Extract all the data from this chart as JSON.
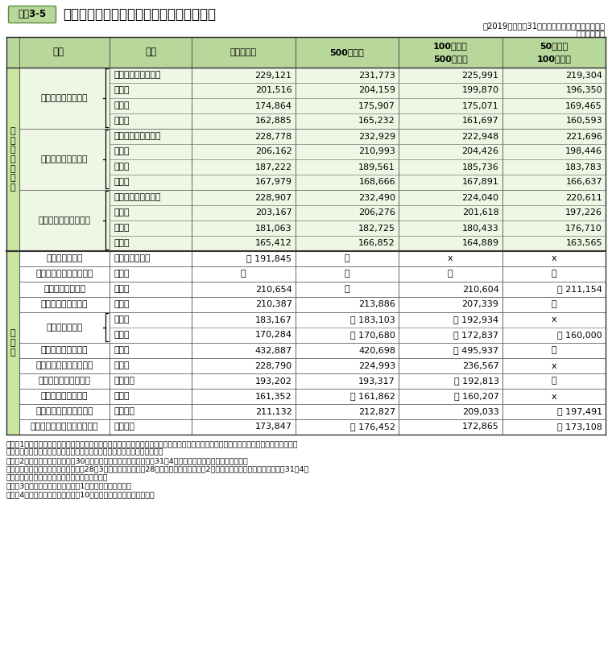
{
  "title": "民間の職種別、学歴別、企業規模別初任給",
  "title_tag": "資料3-5",
  "subtitle": "（2019年（平成31年）職種別民間給与実態調査）",
  "subtitle2": "（単位：円）",
  "col_header_bg": "#b8d89b",
  "sec_label_bg": "#c8e6a0",
  "section1_label": "事\n務\n・\n技\n術\n関\n係",
  "section2_label": "そ\nの\n他",
  "rows": [
    {
      "group": "新　卒　事　務　員",
      "group_rows": 4,
      "has_bracket": true,
      "section": 1,
      "sub_rows": [
        {
          "edu": "大学院修士課程修了",
          "vals": [
            "229,121",
            "231,773",
            "225,991",
            "219,304"
          ],
          "prefix": [
            "",
            "",
            "",
            ""
          ]
        },
        {
          "edu": "大学卒",
          "vals": [
            "201,516",
            "204,159",
            "199,870",
            "196,350"
          ],
          "prefix": [
            "",
            "",
            "",
            ""
          ]
        },
        {
          "edu": "短大卒",
          "vals": [
            "174,864",
            "175,907",
            "175,071",
            "169,465"
          ],
          "prefix": [
            "",
            "",
            "",
            ""
          ]
        },
        {
          "edu": "高校卒",
          "vals": [
            "162,885",
            "165,232",
            "161,697",
            "160,593"
          ],
          "prefix": [
            "",
            "",
            "",
            ""
          ]
        }
      ]
    },
    {
      "group": "新　卒　技　術　者",
      "group_rows": 4,
      "has_bracket": true,
      "section": 1,
      "sub_rows": [
        {
          "edu": "大学院修士課程修了",
          "vals": [
            "228,778",
            "232,929",
            "222,948",
            "221,696"
          ],
          "prefix": [
            "",
            "",
            "",
            ""
          ]
        },
        {
          "edu": "大学卒",
          "vals": [
            "206,162",
            "210,993",
            "204,426",
            "198,446"
          ],
          "prefix": [
            "",
            "",
            "",
            ""
          ]
        },
        {
          "edu": "短大卒",
          "vals": [
            "187,222",
            "189,561",
            "185,736",
            "183,783"
          ],
          "prefix": [
            "",
            "",
            "",
            ""
          ]
        },
        {
          "edu": "高校卒",
          "vals": [
            "167,979",
            "168,666",
            "167,891",
            "166,637"
          ],
          "prefix": [
            "",
            "",
            "",
            ""
          ]
        }
      ]
    },
    {
      "group": "新卒事務員・技術者計",
      "group_rows": 4,
      "has_bracket": true,
      "section": 1,
      "sub_rows": [
        {
          "edu": "大学院修士課程修了",
          "vals": [
            "228,907",
            "232,490",
            "224,040",
            "220,611"
          ],
          "prefix": [
            "",
            "",
            "",
            ""
          ]
        },
        {
          "edu": "大学卒",
          "vals": [
            "203,167",
            "206,276",
            "201,618",
            "197,226"
          ],
          "prefix": [
            "",
            "",
            "",
            ""
          ]
        },
        {
          "edu": "短大卒",
          "vals": [
            "181,063",
            "182,725",
            "180,433",
            "176,710"
          ],
          "prefix": [
            "",
            "",
            "",
            ""
          ]
        },
        {
          "edu": "高校卒",
          "vals": [
            "165,412",
            "166,852",
            "164,889",
            "163,565"
          ],
          "prefix": [
            "",
            "",
            "",
            ""
          ]
        }
      ]
    },
    {
      "group": "新　卒　船　員",
      "group_rows": 1,
      "has_bracket": false,
      "section": 2,
      "sub_rows": [
        {
          "edu": "海上技術学校卒",
          "vals": [
            "191,845",
            "－",
            "x",
            "x"
          ],
          "prefix": [
            "*",
            "",
            "",
            ""
          ]
        }
      ]
    },
    {
      "group": "新　卒　大　学　助　教",
      "group_rows": 1,
      "has_bracket": false,
      "section": 2,
      "sub_rows": [
        {
          "edu": "大学卒",
          "vals": [
            "－",
            "－",
            "－",
            "－"
          ],
          "prefix": [
            "",
            "",
            "",
            ""
          ]
        }
      ]
    },
    {
      "group": "新卒高等学校教諭",
      "group_rows": 1,
      "has_bracket": false,
      "section": 2,
      "sub_rows": [
        {
          "edu": "大学卒",
          "vals": [
            "210,654",
            "－",
            "210,604",
            "211,154"
          ],
          "prefix": [
            "",
            "",
            "",
            "*"
          ]
        }
      ]
    },
    {
      "group": "新　卒　研　究　員",
      "group_rows": 1,
      "has_bracket": false,
      "section": 2,
      "sub_rows": [
        {
          "edu": "大学卒",
          "vals": [
            "210,387",
            "213,886",
            "207,339",
            "－"
          ],
          "prefix": [
            "",
            "",
            "",
            ""
          ]
        }
      ]
    },
    {
      "group": "新卒研究補助員",
      "group_rows": 2,
      "has_bracket": true,
      "section": 2,
      "sub_rows": [
        {
          "edu": "短大卒",
          "vals": [
            "183,167",
            "183,103",
            "192,934",
            "x"
          ],
          "prefix": [
            "",
            "*",
            "*",
            ""
          ]
        },
        {
          "edu": "高校卒",
          "vals": [
            "170,284",
            "170,680",
            "172,837",
            "160,000"
          ],
          "prefix": [
            "",
            "*",
            "*",
            "*"
          ]
        }
      ]
    },
    {
      "group": "準　新　卒　医　師",
      "group_rows": 1,
      "has_bracket": false,
      "section": 2,
      "sub_rows": [
        {
          "edu": "大学卒",
          "vals": [
            "432,887",
            "420,698",
            "495,937",
            "－"
          ],
          "prefix": [
            "",
            "",
            "*",
            ""
          ]
        }
      ]
    },
    {
      "group": "準　新　卒　薬　剤　師",
      "group_rows": 1,
      "has_bracket": false,
      "section": 2,
      "sub_rows": [
        {
          "edu": "大学卒",
          "vals": [
            "228,790",
            "224,993",
            "236,567",
            "x"
          ],
          "prefix": [
            "",
            "",
            "",
            ""
          ]
        }
      ]
    },
    {
      "group": "準新卒診療放射線技師",
      "group_rows": 1,
      "has_bracket": false,
      "section": 2,
      "sub_rows": [
        {
          "edu": "養成所卒",
          "vals": [
            "193,202",
            "193,317",
            "192,813",
            "－"
          ],
          "prefix": [
            "",
            "",
            "*",
            ""
          ]
        }
      ]
    },
    {
      "group": "新　卒　栄　養　士",
      "group_rows": 1,
      "has_bracket": false,
      "section": 2,
      "sub_rows": [
        {
          "edu": "短大卒",
          "vals": [
            "161,352",
            "161,862",
            "160,207",
            "x"
          ],
          "prefix": [
            "",
            "*",
            "*",
            ""
          ]
        }
      ]
    },
    {
      "group": "準　新　卒　看　護　師",
      "group_rows": 1,
      "has_bracket": false,
      "section": 2,
      "sub_rows": [
        {
          "edu": "養成所卒",
          "vals": [
            "211,132",
            "212,827",
            "209,033",
            "197,491"
          ],
          "prefix": [
            "",
            "",
            "",
            "*"
          ]
        }
      ]
    },
    {
      "group": "準　新　卒　准　看　護　師",
      "group_rows": 1,
      "has_bracket": false,
      "section": 2,
      "sub_rows": [
        {
          "edu": "養成所卒",
          "vals": [
            "173,847",
            "176,452",
            "172,865",
            "173,108"
          ],
          "prefix": [
            "",
            "*",
            "",
            "*"
          ]
        }
      ]
    }
  ],
  "notes": [
    "（注）1　金額は、基本給のほか事業所の従業員に一律に支給される給与を含めた額（採用のある事業所の平均）であり、時間外手当、家族",
    "　　　　手当、通勤手当等、特定の者にのみ支給される給与は除いている。",
    "　　　2　「準新卒」とは、平成30年度中に資格免許を取得し、平成31年4月までの間に採用された者をいう。",
    "　　　　なお、医師については、平成28年3月大学卒業後、平成28年度中に免許を取得し、2年間の臨床研修を修了した後、平成31年4月",
    "　　　　までの間に採用された者に限っている。",
    "　　　3　「ｘ」は、調査事業所が1事業所の場合である。",
    "　　　4　「＊」は、調査事業所が10事業所以下であることを示す。"
  ]
}
